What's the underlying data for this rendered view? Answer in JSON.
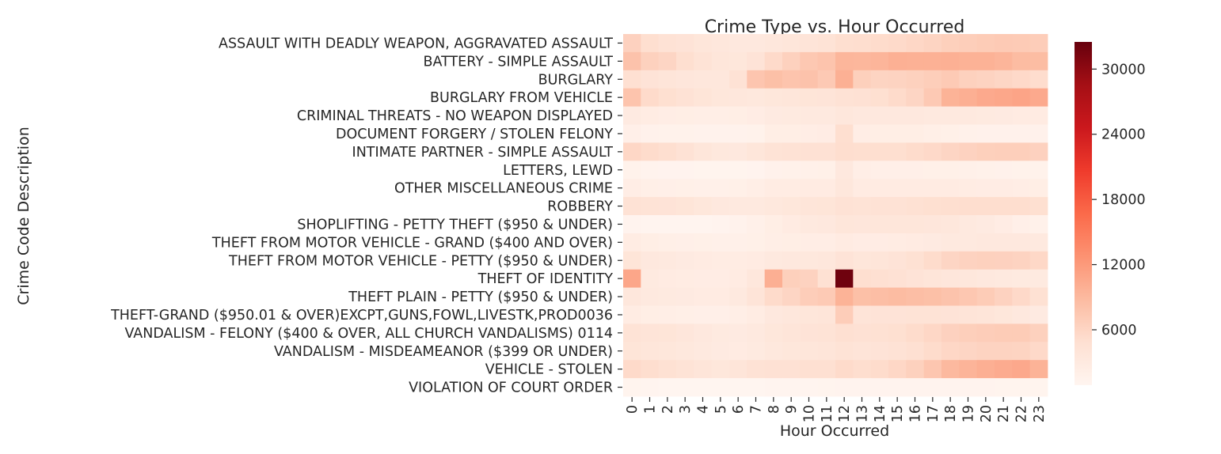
{
  "chart_data": {
    "type": "heatmap",
    "title": "Crime Type vs. Hour Occurred",
    "xlabel": "Hour Occurred",
    "ylabel": "Crime Code Description",
    "x_categories": [
      "0",
      "1",
      "2",
      "3",
      "4",
      "5",
      "6",
      "7",
      "8",
      "9",
      "10",
      "11",
      "12",
      "13",
      "14",
      "15",
      "16",
      "17",
      "18",
      "19",
      "20",
      "21",
      "22",
      "23"
    ],
    "y_categories": [
      "ASSAULT WITH DEADLY WEAPON, AGGRAVATED ASSAULT",
      "BATTERY - SIMPLE ASSAULT",
      "BURGLARY",
      "BURGLARY FROM VEHICLE",
      "CRIMINAL THREATS - NO WEAPON DISPLAYED",
      "DOCUMENT FORGERY / STOLEN FELONY",
      "INTIMATE PARTNER - SIMPLE ASSAULT",
      "LETTERS, LEWD",
      "OTHER MISCELLANEOUS CRIME",
      "ROBBERY",
      "SHOPLIFTING - PETTY THEFT ($950 & UNDER)",
      "THEFT FROM MOTOR VEHICLE - GRAND ($400 AND OVER)",
      "THEFT FROM MOTOR VEHICLE - PETTY ($950 & UNDER)",
      "THEFT OF IDENTITY",
      "THEFT PLAIN - PETTY ($950 & UNDER)",
      "THEFT-GRAND ($950.01 & OVER)EXCPT,GUNS,FOWL,LIVESTK,PROD0036",
      "VANDALISM - FELONY ($400 & OVER, ALL CHURCH VANDALISMS) 0114",
      "VANDALISM - MISDEAMEANOR ($399 OR UNDER)",
      "VEHICLE - STOLEN",
      "VIOLATION OF COURT ORDER"
    ],
    "values": [
      [
        6400,
        5000,
        4500,
        4200,
        3800,
        3500,
        3300,
        3300,
        3500,
        3800,
        4100,
        4300,
        5000,
        5100,
        5300,
        5500,
        5800,
        6100,
        6600,
        6800,
        7000,
        7200,
        7100,
        6900
      ],
      [
        8000,
        6500,
        6000,
        5000,
        4300,
        3800,
        3600,
        4200,
        5500,
        6500,
        7400,
        7800,
        9300,
        9200,
        9400,
        9900,
        9800,
        9800,
        9900,
        9700,
        9700,
        9400,
        8700,
        8600
      ],
      [
        4800,
        4200,
        3900,
        3700,
        3500,
        3500,
        4400,
        7700,
        8300,
        7800,
        8000,
        7300,
        9900,
        6600,
        6100,
        6200,
        6500,
        6800,
        7200,
        6500,
        6200,
        5900,
        5600,
        5200
      ],
      [
        7800,
        5400,
        4900,
        4400,
        4000,
        3600,
        3500,
        3400,
        3600,
        3800,
        4000,
        4100,
        4500,
        4600,
        4900,
        5400,
        6000,
        7300,
        9600,
        10000,
        10500,
        10700,
        11000,
        10500
      ],
      [
        2900,
        2600,
        2400,
        2300,
        2200,
        2200,
        2300,
        2500,
        2900,
        3000,
        3200,
        3200,
        3500,
        3300,
        3300,
        3300,
        3300,
        3200,
        3200,
        3100,
        3000,
        2900,
        2800,
        2700
      ],
      [
        2000,
        1600,
        1500,
        1500,
        1400,
        1400,
        1400,
        1500,
        2300,
        2300,
        2400,
        2500,
        5000,
        2400,
        2300,
        2300,
        2300,
        2100,
        1900,
        1700,
        1600,
        1600,
        1600,
        1600
      ],
      [
        5800,
        5300,
        5000,
        4400,
        3800,
        3400,
        3300,
        3800,
        4300,
        4500,
        4600,
        4600,
        5100,
        5000,
        5000,
        5000,
        5300,
        5600,
        6000,
        6300,
        6600,
        6700,
        6700,
        6400
      ],
      [
        1500,
        1300,
        1200,
        1200,
        1100,
        1100,
        1100,
        1200,
        1600,
        1700,
        1800,
        1900,
        3300,
        2200,
        2000,
        2000,
        2000,
        1900,
        1900,
        1800,
        1700,
        1600,
        1500,
        1500
      ],
      [
        2400,
        2100,
        2000,
        1900,
        1800,
        1800,
        1900,
        2200,
        2600,
        2600,
        2700,
        2700,
        3500,
        2700,
        2700,
        2700,
        2700,
        2700,
        2700,
        2600,
        2500,
        2500,
        2400,
        2300
      ],
      [
        4500,
        4300,
        4200,
        4000,
        3600,
        3300,
        3100,
        3200,
        3400,
        3600,
        3900,
        4000,
        4400,
        4300,
        4400,
        4500,
        4700,
        4900,
        5000,
        5100,
        5100,
        5100,
        5100,
        4900
      ],
      [
        1200,
        1000,
        1000,
        1000,
        1000,
        1200,
        1400,
        1800,
        2300,
        2700,
        3100,
        3300,
        3800,
        3700,
        3800,
        3800,
        3800,
        3700,
        3500,
        3200,
        2900,
        2500,
        2000,
        1700
      ],
      [
        2600,
        2300,
        2100,
        2000,
        1900,
        1800,
        1800,
        1900,
        2200,
        2300,
        2400,
        2400,
        2800,
        2500,
        2500,
        2600,
        2700,
        2900,
        3100,
        3200,
        3300,
        3300,
        3300,
        3100
      ],
      [
        4000,
        3300,
        3100,
        2900,
        2700,
        2600,
        2600,
        2700,
        3100,
        3300,
        3400,
        3500,
        4200,
        3800,
        3900,
        4200,
        4700,
        5300,
        6000,
        6300,
        6500,
        6400,
        6200,
        5700
      ],
      [
        10800,
        3000,
        2700,
        2600,
        2500,
        2500,
        2800,
        3500,
        10000,
        6600,
        6300,
        4700,
        32000,
        5000,
        4800,
        4600,
        4200,
        3900,
        3700,
        3500,
        3300,
        3100,
        3000,
        3000
      ],
      [
        3500,
        3100,
        3000,
        2900,
        2800,
        2800,
        3100,
        4100,
        5400,
        6000,
        6900,
        7200,
        9600,
        8300,
        8500,
        8700,
        8500,
        8300,
        7900,
        7500,
        7000,
        6300,
        5600,
        4700
      ],
      [
        2600,
        2300,
        2200,
        2100,
        2000,
        2000,
        2200,
        2600,
        3300,
        3500,
        3800,
        3900,
        6900,
        4100,
        4200,
        4200,
        4300,
        4300,
        4200,
        4100,
        3900,
        3600,
        3300,
        2900
      ],
      [
        4300,
        4100,
        4000,
        3700,
        3300,
        3000,
        2900,
        3100,
        3600,
        3900,
        4200,
        4300,
        4800,
        4600,
        4700,
        4900,
        5300,
        5800,
        6400,
        6700,
        6900,
        7000,
        7000,
        6500
      ],
      [
        4000,
        3800,
        3600,
        3400,
        3100,
        2900,
        2800,
        3000,
        3400,
        3600,
        3800,
        3900,
        4300,
        4100,
        4200,
        4400,
        4800,
        5300,
        5800,
        6000,
        6200,
        6200,
        6100,
        5600
      ],
      [
        5500,
        5100,
        4700,
        4300,
        3900,
        3600,
        3900,
        4400,
        4600,
        4600,
        4800,
        4800,
        5400,
        5100,
        5300,
        5800,
        6500,
        7600,
        9000,
        9500,
        10000,
        10300,
        10600,
        9600
      ],
      [
        1100,
        1000,
        900,
        900,
        800,
        800,
        800,
        900,
        1000,
        1000,
        1000,
        1100,
        1200,
        1200,
        1200,
        1200,
        1200,
        1200,
        1200,
        1200,
        1200,
        1100,
        1100,
        1100
      ]
    ],
    "colorbar": {
      "min": 900,
      "max": 32500,
      "ticks": [
        30000,
        24000,
        18000,
        12000,
        6000
      ]
    },
    "colormap": "Reds",
    "colors": {
      "low": "#fff5f0",
      "high": "#67000d"
    }
  }
}
